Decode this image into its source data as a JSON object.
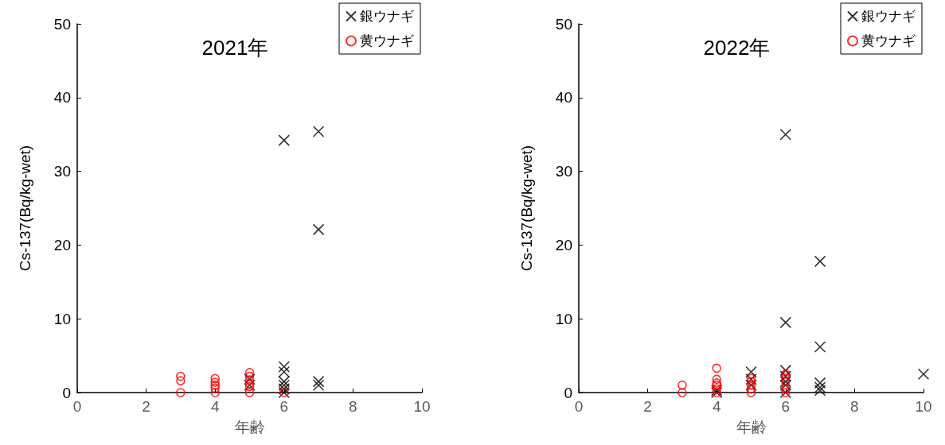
{
  "chart_data": [
    {
      "type": "scatter",
      "title": "2021年",
      "xlabel": "年齢",
      "ylabel": "Cs-137(Bq/kg-wet)",
      "xlim": [
        0,
        10
      ],
      "xticks": [
        0,
        2,
        4,
        6,
        8,
        10
      ],
      "ylim": [
        0,
        50
      ],
      "yticks": [
        0,
        10,
        20,
        30,
        40,
        50
      ],
      "grid": false,
      "legend": "top right",
      "series": [
        {
          "name": "銀ウナギ",
          "color": "#000000",
          "marker": "cross",
          "x": [
            5,
            5,
            6,
            6,
            6,
            6,
            6,
            6,
            6,
            7,
            7,
            7,
            7
          ],
          "values": [
            1.0,
            1.8,
            34.2,
            3.5,
            2.8,
            1.5,
            1.0,
            0.5,
            0,
            35.4,
            22.1,
            1.5,
            1.0
          ]
        },
        {
          "name": "黄ウナギ",
          "color": "#ff0000",
          "marker": "circle",
          "x": [
            3,
            3,
            3,
            4,
            4,
            4,
            4,
            4,
            5,
            5,
            5,
            5,
            5,
            5,
            6
          ],
          "values": [
            2.2,
            1.6,
            0,
            1.9,
            1.4,
            1.0,
            0.6,
            0,
            2.7,
            2.2,
            1.7,
            1.2,
            0.8,
            0,
            0
          ]
        }
      ]
    },
    {
      "type": "scatter",
      "title": "2022年",
      "xlabel": "年齢",
      "ylabel": "Cs-137(Bq/kg-wet)",
      "xlim": [
        0,
        10
      ],
      "xticks": [
        0,
        2,
        4,
        6,
        8,
        10
      ],
      "ylim": [
        0,
        50
      ],
      "yticks": [
        0,
        10,
        20,
        30,
        40,
        50
      ],
      "grid": false,
      "legend": "top right",
      "series": [
        {
          "name": "銀ウナギ",
          "color": "#000000",
          "marker": "cross",
          "x": [
            4,
            4,
            5,
            5,
            5,
            6,
            6,
            6,
            6,
            6,
            6,
            6,
            7,
            7,
            7,
            7,
            7,
            10
          ],
          "values": [
            0,
            0.3,
            2.8,
            1.8,
            1.0,
            35.0,
            9.5,
            3.0,
            2.2,
            1.5,
            1.0,
            0,
            17.8,
            6.2,
            1.3,
            0.7,
            0.3,
            2.5
          ]
        },
        {
          "name": "黄ウナギ",
          "color": "#ff0000",
          "marker": "circle",
          "x": [
            3,
            3,
            4,
            4,
            4,
            4,
            4,
            4,
            5,
            5,
            5,
            5,
            5,
            6,
            6,
            6,
            6,
            6
          ],
          "values": [
            1.0,
            0,
            3.3,
            1.8,
            1.3,
            1.0,
            0.5,
            0,
            1.9,
            1.5,
            1.0,
            0.5,
            0,
            2.5,
            2.0,
            1.5,
            0.5,
            0
          ]
        }
      ]
    }
  ]
}
